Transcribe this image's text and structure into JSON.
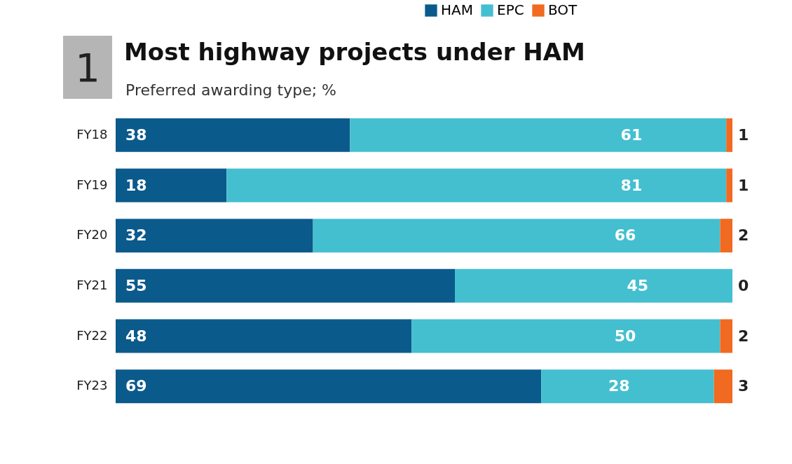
{
  "chart_data": {
    "type": "bar",
    "orientation": "horizontal",
    "stacked": true,
    "data_labels": true,
    "legend": "top",
    "title": "Most highway projects under HAM",
    "subtitle": "Preferred awarding type; %",
    "annotations": [
      "1"
    ],
    "categories": [
      "FY18",
      "FY19",
      "FY20",
      "FY21",
      "FY22",
      "FY23"
    ],
    "series": [
      {
        "name": "HAM",
        "color": "#0b5a8c",
        "values": [
          38,
          18,
          32,
          55,
          48,
          69
        ]
      },
      {
        "name": "EPC",
        "color": "#44bfd0",
        "values": [
          61,
          81,
          66,
          45,
          50,
          28
        ]
      },
      {
        "name": "BOT",
        "color": "#f06a22",
        "values": [
          1,
          1,
          2,
          0,
          2,
          3
        ]
      }
    ]
  }
}
